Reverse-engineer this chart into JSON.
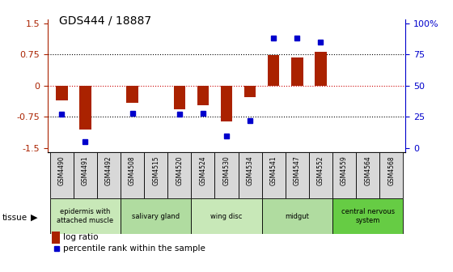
{
  "title": "GDS444 / 18887",
  "samples": [
    "GSM4490",
    "GSM4491",
    "GSM4492",
    "GSM4508",
    "GSM4515",
    "GSM4520",
    "GSM4524",
    "GSM4530",
    "GSM4534",
    "GSM4541",
    "GSM4547",
    "GSM4552",
    "GSM4559",
    "GSM4564",
    "GSM4568"
  ],
  "log_ratio": [
    -0.35,
    -1.05,
    0.0,
    -0.42,
    0.0,
    -0.57,
    -0.47,
    -0.85,
    -0.28,
    0.73,
    0.67,
    0.82,
    0.0,
    0.0,
    0.0
  ],
  "percentile": [
    27,
    5,
    null,
    28,
    null,
    27,
    28,
    10,
    22,
    88,
    88,
    85,
    null,
    null,
    null
  ],
  "tissue_groups": [
    {
      "label": "epidermis with\nattached muscle",
      "start": 0,
      "end": 2,
      "color": "#c8e8b8"
    },
    {
      "label": "salivary gland",
      "start": 3,
      "end": 5,
      "color": "#b0dca0"
    },
    {
      "label": "wing disc",
      "start": 6,
      "end": 8,
      "color": "#c8e8b8"
    },
    {
      "label": "midgut",
      "start": 9,
      "end": 11,
      "color": "#b0dca0"
    },
    {
      "label": "central nervous\nsystem",
      "start": 12,
      "end": 14,
      "color": "#66cc44"
    }
  ],
  "bar_color": "#aa2200",
  "dot_color": "#0000cc",
  "zero_line_color": "#cc0000",
  "ylim_min": -1.6,
  "ylim_max": 1.6,
  "yticks_left": [
    -1.5,
    -0.75,
    0.0,
    0.75,
    1.5
  ],
  "yticks_right": [
    0,
    25,
    50,
    75,
    100
  ],
  "grid_lines": [
    -0.75,
    0.75
  ],
  "bg_color": "#ffffff",
  "sample_cell_color": "#d8d8d8",
  "bar_width": 0.5
}
